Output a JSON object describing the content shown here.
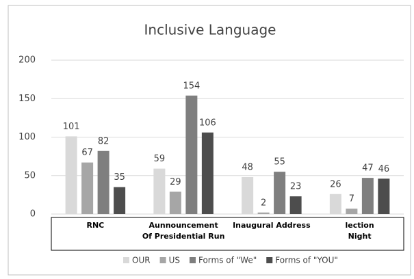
{
  "chart_data": {
    "type": "bar",
    "title": "Inclusive Language",
    "categories": [
      "RNC",
      "Aunnouncement\nOf Presidential Run",
      "Inaugural Address",
      "lection\nNight"
    ],
    "series": [
      {
        "name": "OUR",
        "color": "#d9d9d9",
        "values": [
          101,
          59,
          48,
          26
        ]
      },
      {
        "name": "US",
        "color": "#a6a6a6",
        "values": [
          67,
          29,
          2,
          7
        ]
      },
      {
        "name": "Forms of \"We\"",
        "color": "#7f7f7f",
        "values": [
          82,
          154,
          55,
          47
        ]
      },
      {
        "name": "Forms of \"YOU\"",
        "color": "#4d4d4d",
        "values": [
          35,
          106,
          23,
          46
        ]
      }
    ],
    "ylim": [
      0,
      200
    ],
    "yticks": [
      0,
      50,
      100,
      150,
      200
    ],
    "grid": true,
    "legend": "bottom"
  }
}
